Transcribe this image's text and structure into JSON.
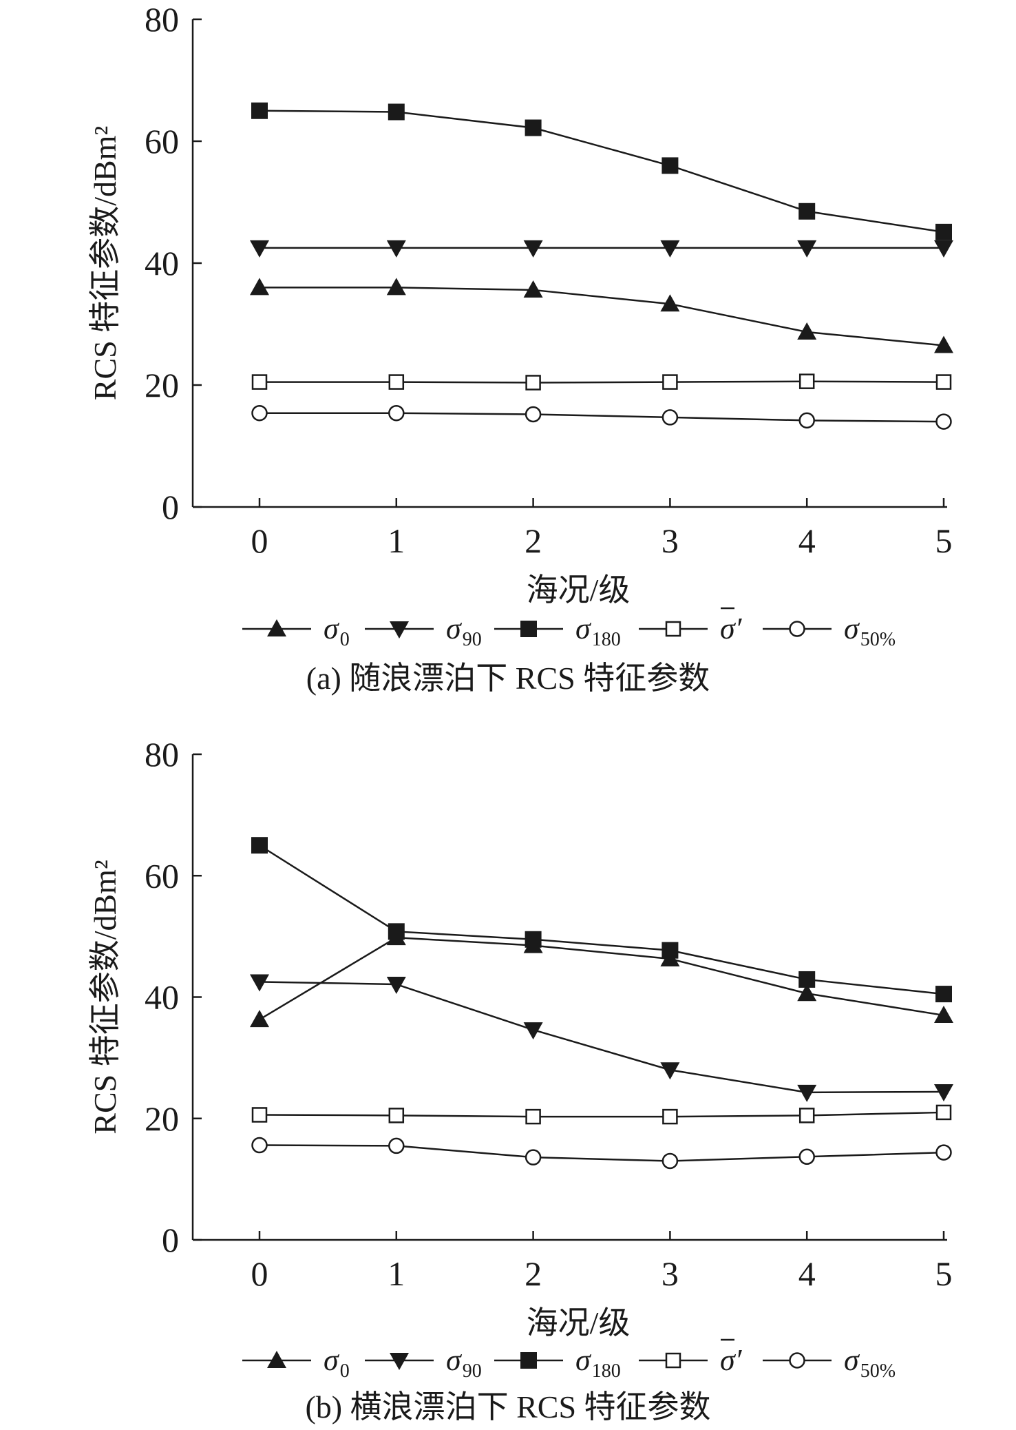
{
  "chart_data": [
    {
      "type": "line",
      "caption": "(a) 随浪漂泊下 RCS 特征参数",
      "xlabel": "海况/级",
      "ylabel": "RCS 特征参数/dBm²",
      "x": [
        0,
        1,
        2,
        3,
        4,
        5
      ],
      "xticks": [
        "0",
        "1",
        "2",
        "3",
        "4",
        "5"
      ],
      "ylim": [
        0,
        80
      ],
      "yticks": [
        "0",
        "20",
        "40",
        "60",
        "80"
      ],
      "grid": false,
      "legend_position": "bottom",
      "series": [
        {
          "name": "σ0",
          "marker": "triangle-up",
          "values": [
            36.0,
            36.0,
            35.6,
            33.3,
            28.7,
            26.5
          ]
        },
        {
          "name": "σ90",
          "marker": "triangle-down",
          "values": [
            42.5,
            42.5,
            42.5,
            42.5,
            42.5,
            42.5
          ]
        },
        {
          "name": "σ180",
          "marker": "square-filled",
          "values": [
            65.0,
            64.8,
            62.2,
            56.0,
            48.5,
            45.1
          ]
        },
        {
          "name": "σ̄′",
          "marker": "square-open",
          "values": [
            20.5,
            20.5,
            20.4,
            20.5,
            20.6,
            20.5
          ]
        },
        {
          "name": "σ50%",
          "marker": "circle-open",
          "values": [
            15.4,
            15.4,
            15.2,
            14.7,
            14.2,
            14.0
          ]
        }
      ]
    },
    {
      "type": "line",
      "caption": "(b) 横浪漂泊下 RCS 特征参数",
      "xlabel": "海况/级",
      "ylabel": "RCS 特征参数/dBm²",
      "x": [
        0,
        1,
        2,
        3,
        4,
        5
      ],
      "xticks": [
        "0",
        "1",
        "2",
        "3",
        "4",
        "5"
      ],
      "ylim": [
        0,
        80
      ],
      "yticks": [
        "0",
        "20",
        "40",
        "60",
        "80"
      ],
      "grid": false,
      "legend_position": "bottom",
      "series": [
        {
          "name": "σ0",
          "marker": "triangle-up",
          "values": [
            36.3,
            49.8,
            48.5,
            46.3,
            40.6,
            37.0
          ]
        },
        {
          "name": "σ90",
          "marker": "triangle-down",
          "values": [
            42.5,
            42.1,
            34.6,
            28.0,
            24.3,
            24.4
          ]
        },
        {
          "name": "σ180",
          "marker": "square-filled",
          "values": [
            65.0,
            50.8,
            49.5,
            47.7,
            42.9,
            40.5
          ]
        },
        {
          "name": "σ̄′",
          "marker": "square-open",
          "values": [
            20.6,
            20.5,
            20.3,
            20.3,
            20.5,
            21.0
          ]
        },
        {
          "name": "σ50%",
          "marker": "circle-open",
          "values": [
            15.6,
            15.5,
            13.6,
            13.0,
            13.7,
            14.4
          ]
        }
      ]
    }
  ],
  "legend": [
    {
      "base": "σ",
      "sub": "0",
      "marker": "triangle-up"
    },
    {
      "base": "σ",
      "sub": "90",
      "marker": "triangle-down"
    },
    {
      "base": "σ",
      "sub": "180",
      "marker": "square-filled"
    },
    {
      "base": "σ",
      "overline": true,
      "prime": "′",
      "sub": "",
      "marker": "square-open"
    },
    {
      "base": "σ",
      "sub": "50%",
      "marker": "circle-open"
    }
  ],
  "colors": {
    "ink": "#1a1a1a",
    "background": "#ffffff"
  }
}
